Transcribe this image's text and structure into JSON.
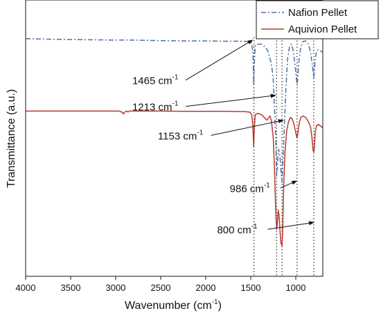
{
  "chart_data": {
    "type": "line",
    "xlabel": "Wavenumber (cm",
    "xlabel_sup": "-1",
    "xlabel_end": ")",
    "ylabel": "Transmittance (a.u.)",
    "xlim": [
      4000,
      700
    ],
    "x_reversed": true,
    "ylim": [
      0,
      1
    ],
    "x_ticks": [
      4000,
      3500,
      3000,
      2500,
      2000,
      1500,
      1000
    ],
    "grid": false,
    "legend_placement": "top-right",
    "series": [
      {
        "name": "Nafion Pellet",
        "color": "#4e6fa3",
        "style": "dash-dot",
        "points": [
          [
            4000,
            0.86
          ],
          [
            3500,
            0.857
          ],
          [
            3000,
            0.855
          ],
          [
            2800,
            0.855
          ],
          [
            2500,
            0.853
          ],
          [
            2200,
            0.852
          ],
          [
            2000,
            0.852
          ],
          [
            1800,
            0.851
          ],
          [
            1600,
            0.851
          ],
          [
            1520,
            0.85
          ],
          [
            1490,
            0.845
          ],
          [
            1475,
            0.8
          ],
          [
            1468,
            0.69
          ],
          [
            1462,
            0.76
          ],
          [
            1450,
            0.835
          ],
          [
            1420,
            0.84
          ],
          [
            1380,
            0.84
          ],
          [
            1340,
            0.83
          ],
          [
            1310,
            0.815
          ],
          [
            1290,
            0.79
          ],
          [
            1270,
            0.77
          ],
          [
            1250,
            0.71
          ],
          [
            1235,
            0.6
          ],
          [
            1220,
            0.47
          ],
          [
            1213,
            0.36
          ],
          [
            1205,
            0.4
          ],
          [
            1190,
            0.46
          ],
          [
            1175,
            0.43
          ],
          [
            1160,
            0.36
          ],
          [
            1153,
            0.34
          ],
          [
            1145,
            0.4
          ],
          [
            1130,
            0.52
          ],
          [
            1110,
            0.68
          ],
          [
            1090,
            0.79
          ],
          [
            1070,
            0.83
          ],
          [
            1050,
            0.84
          ],
          [
            1030,
            0.82
          ],
          [
            1010,
            0.77
          ],
          [
            995,
            0.72
          ],
          [
            986,
            0.69
          ],
          [
            978,
            0.72
          ],
          [
            965,
            0.78
          ],
          [
            945,
            0.83
          ],
          [
            920,
            0.85
          ],
          [
            890,
            0.852
          ],
          [
            860,
            0.84
          ],
          [
            835,
            0.81
          ],
          [
            815,
            0.76
          ],
          [
            805,
            0.73
          ],
          [
            800,
            0.72
          ],
          [
            795,
            0.735
          ],
          [
            785,
            0.78
          ],
          [
            770,
            0.815
          ],
          [
            750,
            0.82
          ],
          [
            720,
            0.815
          ],
          [
            700,
            0.81
          ]
        ]
      },
      {
        "name": "Aquivion Pellet",
        "color": "#b33a2e",
        "style": "solid",
        "points": [
          [
            4000,
            0.598
          ],
          [
            3500,
            0.598
          ],
          [
            3100,
            0.598
          ],
          [
            2960,
            0.598
          ],
          [
            2930,
            0.594
          ],
          [
            2915,
            0.588
          ],
          [
            2900,
            0.594
          ],
          [
            2880,
            0.598
          ],
          [
            2860,
            0.595
          ],
          [
            2845,
            0.598
          ],
          [
            2500,
            0.598
          ],
          [
            2200,
            0.597
          ],
          [
            1800,
            0.597
          ],
          [
            1560,
            0.596
          ],
          [
            1510,
            0.594
          ],
          [
            1490,
            0.585
          ],
          [
            1478,
            0.55
          ],
          [
            1468,
            0.47
          ],
          [
            1460,
            0.54
          ],
          [
            1450,
            0.585
          ],
          [
            1420,
            0.59
          ],
          [
            1380,
            0.585
          ],
          [
            1350,
            0.575
          ],
          [
            1320,
            0.565
          ],
          [
            1300,
            0.575
          ],
          [
            1285,
            0.58
          ],
          [
            1270,
            0.56
          ],
          [
            1250,
            0.5
          ],
          [
            1235,
            0.38
          ],
          [
            1225,
            0.25
          ],
          [
            1213,
            0.17
          ],
          [
            1205,
            0.19
          ],
          [
            1195,
            0.24
          ],
          [
            1185,
            0.22
          ],
          [
            1175,
            0.16
          ],
          [
            1165,
            0.12
          ],
          [
            1153,
            0.11
          ],
          [
            1145,
            0.17
          ],
          [
            1135,
            0.32
          ],
          [
            1120,
            0.45
          ],
          [
            1100,
            0.53
          ],
          [
            1080,
            0.56
          ],
          [
            1060,
            0.575
          ],
          [
            1040,
            0.57
          ],
          [
            1020,
            0.55
          ],
          [
            1000,
            0.52
          ],
          [
            990,
            0.505
          ],
          [
            986,
            0.5
          ],
          [
            980,
            0.51
          ],
          [
            965,
            0.55
          ],
          [
            945,
            0.575
          ],
          [
            920,
            0.58
          ],
          [
            890,
            0.575
          ],
          [
            860,
            0.56
          ],
          [
            835,
            0.54
          ],
          [
            820,
            0.5
          ],
          [
            808,
            0.455
          ],
          [
            800,
            0.45
          ],
          [
            792,
            0.47
          ],
          [
            785,
            0.52
          ],
          [
            770,
            0.545
          ],
          [
            750,
            0.55
          ],
          [
            730,
            0.545
          ],
          [
            710,
            0.54
          ],
          [
            700,
            0.535
          ]
        ]
      }
    ],
    "vlines": [
      1465,
      1213,
      1153,
      986,
      800
    ],
    "annotations": [
      {
        "value": "1465",
        "unit": "cm",
        "sup": "-1",
        "x": 1465,
        "tx": 2560,
        "ty": 0.695,
        "ax": 1480,
        "ay": 0.855
      },
      {
        "value": "1213",
        "unit": "cm",
        "sup": "-1",
        "x": 1213,
        "tx": 2560,
        "ty": 0.6,
        "ax": 1225,
        "ay": 0.655
      },
      {
        "value": "1153",
        "unit": "cm",
        "sup": "-1",
        "x": 1153,
        "tx": 2280,
        "ty": 0.495,
        "ax": 1140,
        "ay": 0.565
      },
      {
        "value": "986",
        "unit": "cm",
        "sup": "-1",
        "x": 986,
        "tx": 1510,
        "ty": 0.305,
        "ax": 990,
        "ay": 0.345
      },
      {
        "value": "800",
        "unit": "cm",
        "sup": "-1",
        "x": 800,
        "tx": 1650,
        "ty": 0.155,
        "ax": 800,
        "ay": 0.195
      }
    ]
  }
}
